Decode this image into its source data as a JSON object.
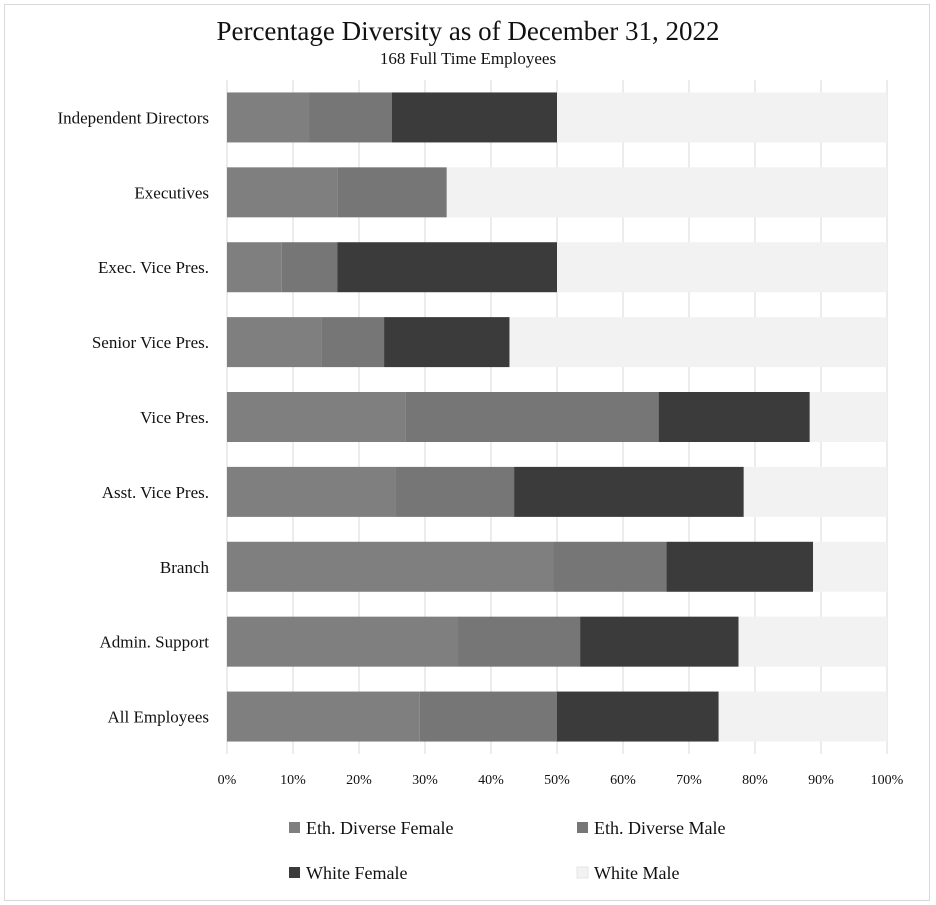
{
  "chart_data": {
    "type": "bar",
    "orientation": "horizontal",
    "stacked": true,
    "percent_stacked": true,
    "title": "Percentage Diversity as of December 31, 2022",
    "subtitle": "168 Full Time Employees",
    "categories": [
      "Independent Directors",
      "Executives",
      "Exec. Vice Pres.",
      "Senior Vice Pres.",
      "Vice Pres.",
      "Asst. Vice Pres.",
      "Branch",
      "Admin. Support",
      "All Employees"
    ],
    "series": [
      {
        "name": "Eth. Diverse Female",
        "color": "#7f7f7f",
        "values": [
          12.5,
          16.7,
          8.3,
          14.3,
          27.0,
          25.6,
          49.4,
          35.0,
          29.2
        ]
      },
      {
        "name": "Eth. Diverse Male",
        "color": "#767676",
        "values": [
          12.5,
          16.6,
          8.4,
          9.5,
          38.4,
          17.9,
          17.2,
          18.5,
          20.8
        ]
      },
      {
        "name": "White Female",
        "color": "#3b3b3b",
        "values": [
          25.0,
          0,
          33.3,
          19.0,
          22.9,
          34.8,
          22.2,
          24.0,
          24.5
        ]
      },
      {
        "name": "White Male",
        "color": "#f2f2f2",
        "values": [
          50.0,
          66.7,
          50.0,
          57.2,
          11.7,
          21.7,
          11.2,
          22.5,
          25.5
        ]
      }
    ],
    "x_ticks": [
      "0%",
      "10%",
      "20%",
      "30%",
      "40%",
      "50%",
      "60%",
      "70%",
      "80%",
      "90%",
      "100%"
    ],
    "xlim": [
      0,
      100
    ],
    "grid": true,
    "legend_position": "bottom"
  }
}
